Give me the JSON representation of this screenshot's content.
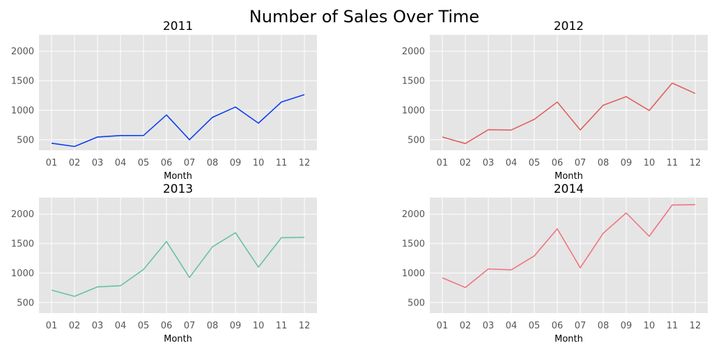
{
  "figure": {
    "title": "Number of Sales Over Time"
  },
  "chart_data": [
    {
      "type": "line",
      "title": "2011",
      "xlabel": "Month",
      "ylabel": "",
      "categories": [
        "01",
        "02",
        "03",
        "04",
        "05",
        "06",
        "07",
        "08",
        "09",
        "10",
        "11",
        "12"
      ],
      "values": [
        440,
        385,
        545,
        570,
        572,
        920,
        500,
        880,
        1055,
        780,
        1140,
        1265
      ],
      "color": "#0a3ef2",
      "ylim": [
        320,
        2280
      ],
      "yticks": [
        500,
        1000,
        1500,
        2000
      ],
      "grid": true
    },
    {
      "type": "line",
      "title": "2012",
      "xlabel": "Month",
      "ylabel": "",
      "categories": [
        "01",
        "02",
        "03",
        "04",
        "05",
        "06",
        "07",
        "08",
        "09",
        "10",
        "11",
        "12"
      ],
      "values": [
        545,
        435,
        670,
        665,
        845,
        1140,
        665,
        1085,
        1230,
        995,
        1460,
        1285
      ],
      "color": "#e0605e",
      "ylim": [
        320,
        2280
      ],
      "yticks": [
        500,
        1000,
        1500,
        2000
      ],
      "grid": true
    },
    {
      "type": "line",
      "title": "2013",
      "xlabel": "Month",
      "ylabel": "",
      "categories": [
        "01",
        "02",
        "03",
        "04",
        "05",
        "06",
        "07",
        "08",
        "09",
        "10",
        "11",
        "12"
      ],
      "values": [
        710,
        605,
        765,
        785,
        1060,
        1535,
        925,
        1445,
        1685,
        1100,
        1600,
        1605
      ],
      "color": "#66c2a2",
      "ylim": [
        320,
        2280
      ],
      "yticks": [
        500,
        1000,
        1500,
        2000
      ],
      "grid": true
    },
    {
      "type": "line",
      "title": "2014",
      "xlabel": "Month",
      "ylabel": "",
      "categories": [
        "01",
        "02",
        "03",
        "04",
        "05",
        "06",
        "07",
        "08",
        "09",
        "10",
        "11",
        "12"
      ],
      "values": [
        920,
        755,
        1070,
        1055,
        1290,
        1750,
        1090,
        1675,
        2020,
        1625,
        2155,
        2160
      ],
      "color": "#f07381",
      "ylim": [
        320,
        2280
      ],
      "yticks": [
        500,
        1000,
        1500,
        2000
      ],
      "grid": true
    }
  ]
}
